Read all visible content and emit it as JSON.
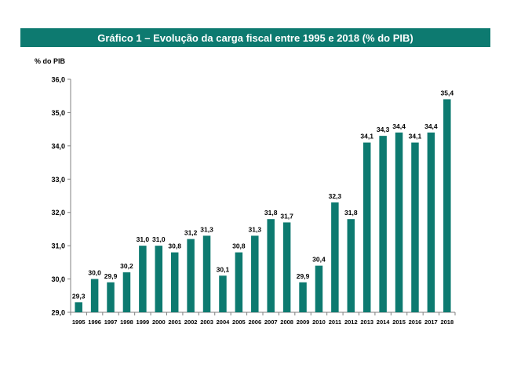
{
  "chart_data": {
    "type": "bar",
    "title": "Gráfico 1 – Evolução da carga fiscal entre 1995 e 2018 (% do PIB)",
    "ylabel": "% do PIB",
    "xlabel": "",
    "ylim": [
      29.0,
      36.0
    ],
    "yticks": [
      "29,0",
      "30,0",
      "31,0",
      "32,0",
      "33,0",
      "34,0",
      "35,0",
      "36,0"
    ],
    "grid": false,
    "legend": "none",
    "bar_color": "#0d7a70",
    "categories": [
      "1995",
      "1996",
      "1997",
      "1998",
      "1999",
      "2000",
      "2001",
      "2002",
      "2003",
      "2004",
      "2005",
      "2006",
      "2007",
      "2008",
      "2009",
      "2010",
      "2011",
      "2012",
      "2013",
      "2014",
      "2015",
      "2016",
      "2017",
      "2018"
    ],
    "values": [
      29.3,
      30.0,
      29.9,
      30.2,
      31.0,
      31.0,
      30.8,
      31.2,
      31.3,
      30.1,
      30.8,
      31.3,
      31.8,
      31.7,
      29.9,
      30.4,
      32.3,
      31.8,
      34.1,
      34.3,
      34.4,
      34.1,
      34.4,
      35.4
    ],
    "value_labels": [
      "29,3",
      "30,0",
      "29,9",
      "30,2",
      "31,0",
      "31,0",
      "30,8",
      "31,2",
      "31,3",
      "30,1",
      "30,8",
      "31,3",
      "31,8",
      "31,7",
      "29,9",
      "30,4",
      "32,3",
      "31,8",
      "34,1",
      "34,3",
      "34,4",
      "34,1",
      "34,4",
      "35,4"
    ]
  }
}
